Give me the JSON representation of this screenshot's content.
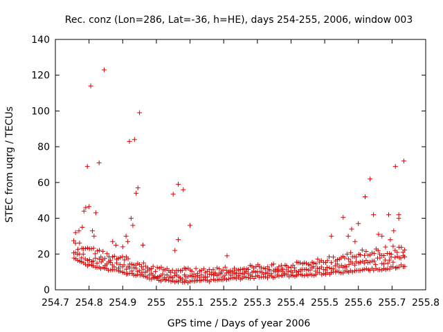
{
  "chart_data": {
    "type": "scatter",
    "title": "Rec. conz (Lon=286, Lat=-36, h=HE), days 254-255, 2006, window 003",
    "xlabel": "GPS time / Days of year 2006",
    "ylabel": "STEC from uqrg / TECUs",
    "xlim": [
      254.7,
      255.8
    ],
    "ylim": [
      0,
      140
    ],
    "xticks": [
      "254.7",
      "254.8",
      "254.9",
      "255",
      "255.1",
      "255.2",
      "255.3",
      "255.4",
      "255.5",
      "255.6",
      "255.7",
      "255.8"
    ],
    "yticks": [
      "0",
      "20",
      "40",
      "60",
      "80",
      "100",
      "120",
      "140"
    ],
    "grid": false,
    "legend": "none",
    "marker": "+",
    "color": "#dd0000",
    "outliers": [
      [
        254.76,
        32
      ],
      [
        254.77,
        33
      ],
      [
        254.78,
        35
      ],
      [
        254.785,
        44
      ],
      [
        254.79,
        46
      ],
      [
        254.795,
        69
      ],
      [
        254.8,
        46.5
      ],
      [
        254.805,
        114
      ],
      [
        254.81,
        33
      ],
      [
        254.815,
        30
      ],
      [
        254.82,
        43
      ],
      [
        254.83,
        71
      ],
      [
        254.845,
        123
      ],
      [
        254.87,
        27
      ],
      [
        254.88,
        25
      ],
      [
        254.9,
        24
      ],
      [
        254.91,
        30
      ],
      [
        254.915,
        27
      ],
      [
        254.92,
        83
      ],
      [
        254.925,
        40
      ],
      [
        254.93,
        36
      ],
      [
        254.935,
        84
      ],
      [
        254.94,
        54
      ],
      [
        254.945,
        57
      ],
      [
        254.95,
        99
      ],
      [
        254.96,
        25
      ],
      [
        255.05,
        53.5
      ],
      [
        255.065,
        59
      ],
      [
        255.065,
        28
      ],
      [
        255.08,
        56
      ],
      [
        255.1,
        36
      ],
      [
        255.055,
        22
      ],
      [
        255.21,
        19
      ],
      [
        255.52,
        30
      ],
      [
        255.555,
        40.5
      ],
      [
        255.57,
        30
      ],
      [
        255.58,
        34
      ],
      [
        255.59,
        27
      ],
      [
        255.6,
        37
      ],
      [
        255.62,
        52
      ],
      [
        255.635,
        62
      ],
      [
        255.645,
        42
      ],
      [
        255.66,
        31
      ],
      [
        255.67,
        30
      ],
      [
        255.69,
        42
      ],
      [
        255.695,
        28
      ],
      [
        255.705,
        33
      ],
      [
        255.71,
        69
      ],
      [
        255.72,
        42
      ],
      [
        255.72,
        40
      ],
      [
        255.735,
        72
      ]
    ],
    "band_start": 254.755,
    "band_end": 255.74,
    "band_step": 0.00575,
    "lower_envelope": [
      [
        254.75,
        17
      ],
      [
        254.8,
        13
      ],
      [
        254.85,
        11
      ],
      [
        254.9,
        9
      ],
      [
        254.95,
        7.5
      ],
      [
        255,
        5
      ],
      [
        255.1,
        3.5
      ],
      [
        255.2,
        5
      ],
      [
        255.3,
        6.5
      ],
      [
        255.4,
        7
      ],
      [
        255.5,
        8.5
      ],
      [
        255.6,
        10
      ],
      [
        255.7,
        11.5
      ],
      [
        255.74,
        13
      ]
    ],
    "upper_envelope": [
      [
        254.75,
        28
      ],
      [
        254.8,
        24
      ],
      [
        254.85,
        21
      ],
      [
        254.9,
        19
      ],
      [
        254.95,
        16
      ],
      [
        255,
        13
      ],
      [
        255.1,
        12
      ],
      [
        255.2,
        13
      ],
      [
        255.3,
        14
      ],
      [
        255.4,
        15
      ],
      [
        255.5,
        18
      ],
      [
        255.6,
        22
      ],
      [
        255.7,
        25
      ],
      [
        255.74,
        26
      ]
    ]
  }
}
